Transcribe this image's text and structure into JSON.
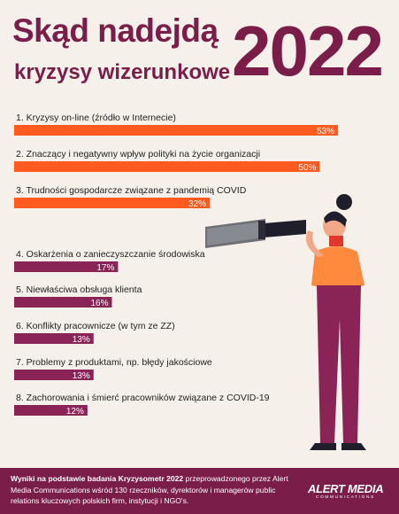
{
  "header": {
    "title_line1": "Skąd nadejdą",
    "title_line2": "kryzysy wizerunkowe",
    "year": "2022"
  },
  "colors": {
    "title": "#7a1d49",
    "bar_top": "#ff5a1f",
    "bar_rest": "#8a2456",
    "background": "#f5f0ea"
  },
  "chart_data": {
    "type": "bar",
    "orientation": "horizontal",
    "categories": [
      "1. Kryzysy on-line (źródło w Internecie)",
      "2. Znaczący i negatywny wpływ polityki na życie organizacji",
      "3. Trudności gospodarcze związane z pandemią COVID",
      "4. Oskarżenia o zanieczyszczanie środowiska",
      "5. Niewłaściwa obsługa klienta",
      "6. Konflikty pracownicze (w tym ze ZZ)",
      "7. Problemy z produktami, np. błędy jakościowe",
      "8. Zachorowania i śmierć pracowników związane z COVID-19"
    ],
    "values": [
      53,
      50,
      32,
      17,
      16,
      13,
      13,
      12
    ],
    "value_labels": [
      "53%",
      "50%",
      "32%",
      "17%",
      "16%",
      "13%",
      "13%",
      "12%"
    ],
    "unit": "%",
    "xlim": [
      0,
      53
    ],
    "highlighted_top": 3
  },
  "footer": {
    "bold": "Wyniki na podstawie badania Kryzysometr 2022",
    "text": " przeprowadzonego przez Alert Media Communications wśród 130 rzeczników, dyrektorów i managerów public relations kluczowych polskich firm, instytucji i NGO's.",
    "logo_text": "ALERT MEDIA",
    "logo_subtext": "COMMUNICATIONS"
  }
}
